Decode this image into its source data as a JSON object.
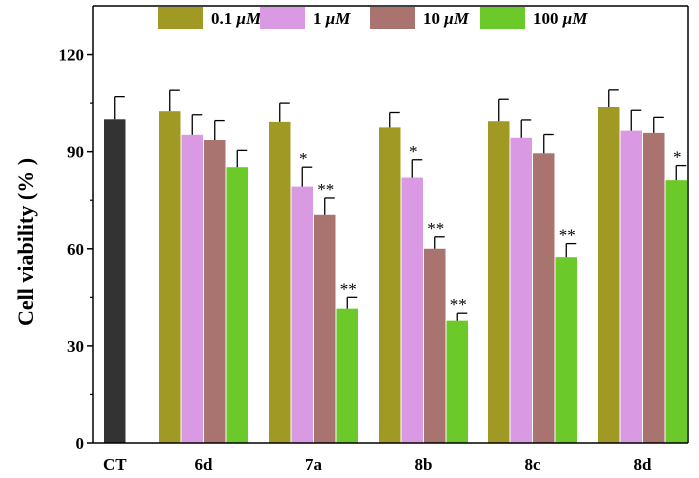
{
  "chart_data": {
    "type": "bar",
    "title": "",
    "xlabel": "",
    "ylabel": "Cell viability (% )",
    "ylim": [
      0,
      135
    ],
    "yticks": [
      0,
      30,
      60,
      90,
      120
    ],
    "grid": false,
    "legend_position": "top",
    "control": {
      "category": "CT",
      "value": 100,
      "error": 7,
      "color": "#333333"
    },
    "categories": [
      "6d",
      "7a",
      "8b",
      "8c",
      "8d"
    ],
    "series": [
      {
        "name": "0.1 μM",
        "name_prefix": "0.1 ",
        "name_unit": "μM",
        "color": "#A09A24",
        "values": [
          102.5,
          99.2,
          97.5,
          99.4,
          103.8
        ],
        "errors": [
          6.5,
          5.8,
          4.6,
          6.8,
          5.3
        ],
        "significance": [
          "",
          "",
          "",
          "",
          ""
        ]
      },
      {
        "name": "1 μM",
        "name_prefix": "1 ",
        "name_unit": "μM",
        "color": "#D99AE3",
        "values": [
          95.2,
          79.2,
          82.0,
          94.3,
          96.5
        ],
        "errors": [
          6.2,
          6.0,
          5.5,
          5.5,
          6.3
        ],
        "significance": [
          "",
          "*",
          "*",
          "",
          ""
        ]
      },
      {
        "name": "10 μM",
        "name_prefix": "10 ",
        "name_unit": "μM",
        "color": "#A9736F",
        "values": [
          93.6,
          70.5,
          60.0,
          89.5,
          95.8
        ],
        "errors": [
          6.0,
          5.2,
          3.7,
          5.8,
          4.8
        ],
        "significance": [
          "",
          "**",
          "**",
          "",
          ""
        ]
      },
      {
        "name": "100 μM",
        "name_prefix": "100 ",
        "name_unit": "μM",
        "color": "#6CC92A",
        "values": [
          85.2,
          41.5,
          37.8,
          57.4,
          81.2
        ],
        "errors": [
          5.2,
          3.5,
          2.3,
          4.2,
          4.5
        ],
        "significance": [
          "",
          "**",
          "**",
          "**",
          "*"
        ]
      }
    ]
  }
}
